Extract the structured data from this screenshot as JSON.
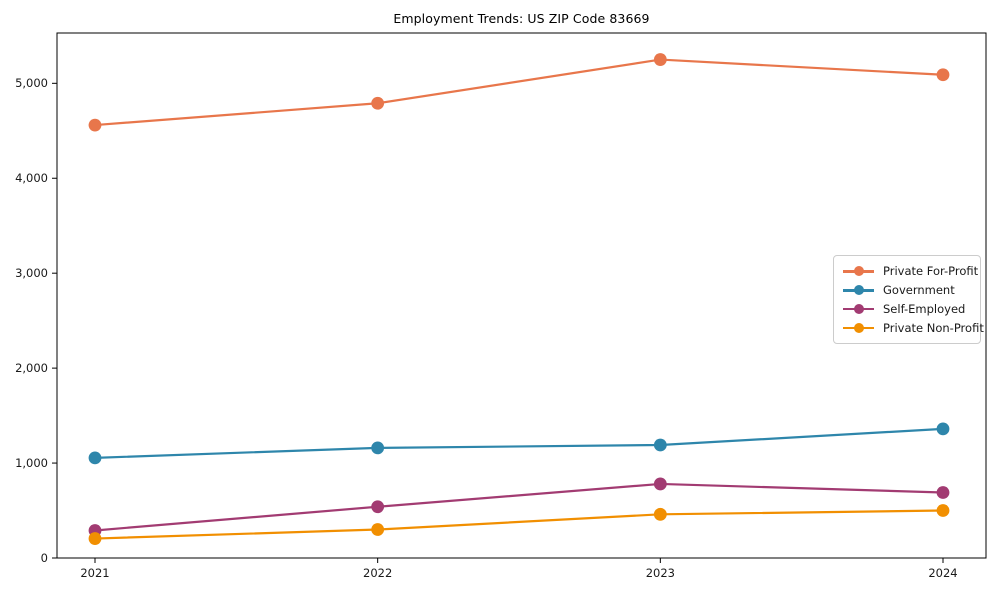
{
  "chart_data": {
    "type": "line",
    "title": "Employment Trends: US ZIP Code 83669",
    "x_categories": [
      "2021",
      "2022",
      "2023",
      "2024"
    ],
    "series": [
      {
        "name": "Private For-Profit",
        "color": "#E8764B",
        "values": [
          4560,
          4790,
          5250,
          5090
        ]
      },
      {
        "name": "Government",
        "color": "#2E86AB",
        "values": [
          1055,
          1160,
          1190,
          1360
        ]
      },
      {
        "name": "Self-Employed",
        "color": "#A23B72",
        "values": [
          290,
          540,
          780,
          690
        ]
      },
      {
        "name": "Private Non-Profit",
        "color": "#F18F01",
        "values": [
          205,
          300,
          460,
          500
        ]
      }
    ],
    "ylim": [
      0,
      5530
    ],
    "yticks": [
      0,
      1000,
      2000,
      3000,
      4000,
      5000
    ],
    "xlabel": "",
    "ylabel": "",
    "grid": false,
    "legend_position": "center-right",
    "marker": "circle"
  },
  "style_colors": {
    "spine": "#000000",
    "tick_label": "#1a1a1a",
    "legend_border": "#cccccc",
    "background": "#ffffff"
  }
}
